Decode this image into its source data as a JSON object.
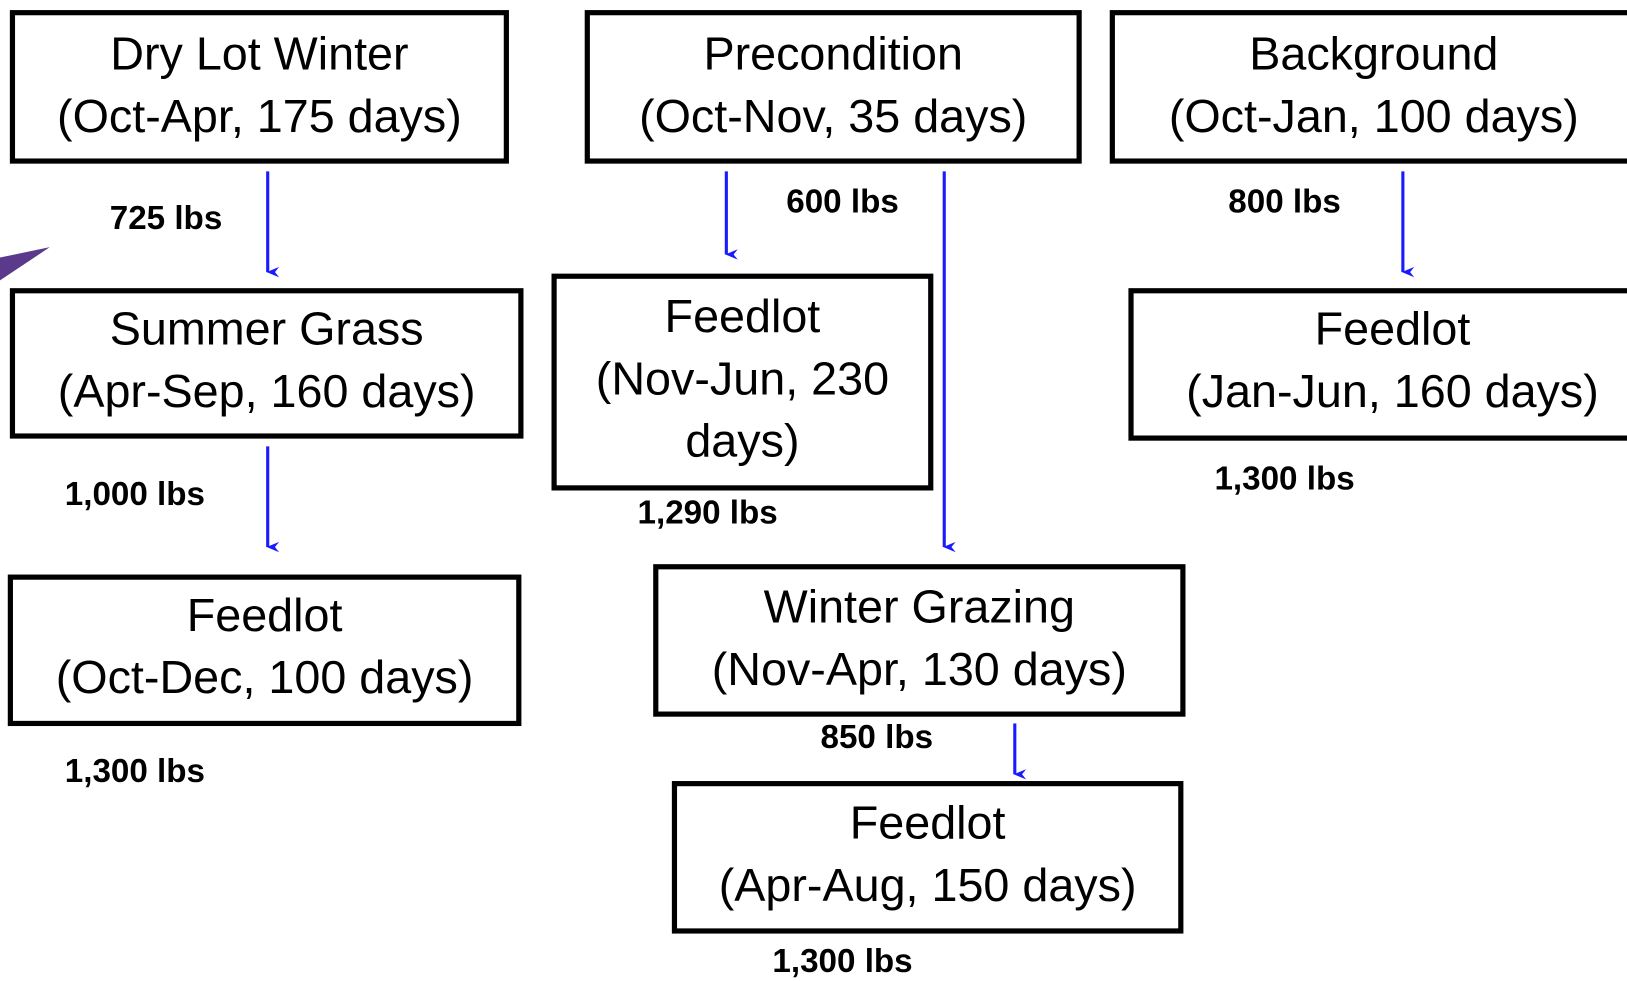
{
  "nodes": [
    {
      "lines": [
        "Dry Lot Winter",
        "(Oct-Apr, 175 days)"
      ]
    },
    {
      "lines": [
        "Precondition",
        "(Oct-Nov, 35 days)"
      ]
    },
    {
      "lines": [
        "Background",
        "(Oct-Jan, 100 days)"
      ]
    },
    {
      "lines": [
        "Summer Grass",
        "(Apr-Sep, 160 days)"
      ]
    },
    {
      "lines": [
        "Feedlot",
        "(Nov-Jun, 230",
        "days)"
      ]
    },
    {
      "lines": [
        "Feedlot",
        "(Jan-Jun, 160 days)"
      ]
    },
    {
      "lines": [
        "Feedlot",
        "(Oct-Dec, 100 days)"
      ]
    },
    {
      "lines": [
        "Winter Grazing",
        "(Nov-Apr, 130 days)"
      ]
    },
    {
      "lines": [
        "Feedlot",
        "(Apr-Aug, 150 days)"
      ]
    }
  ],
  "weights": [
    "725 lbs",
    "1,000 lbs",
    "1,300 lbs",
    "600 lbs",
    "1,290 lbs",
    "800 lbs",
    "1,300 lbs",
    "850 lbs",
    "1,300 lbs"
  ]
}
